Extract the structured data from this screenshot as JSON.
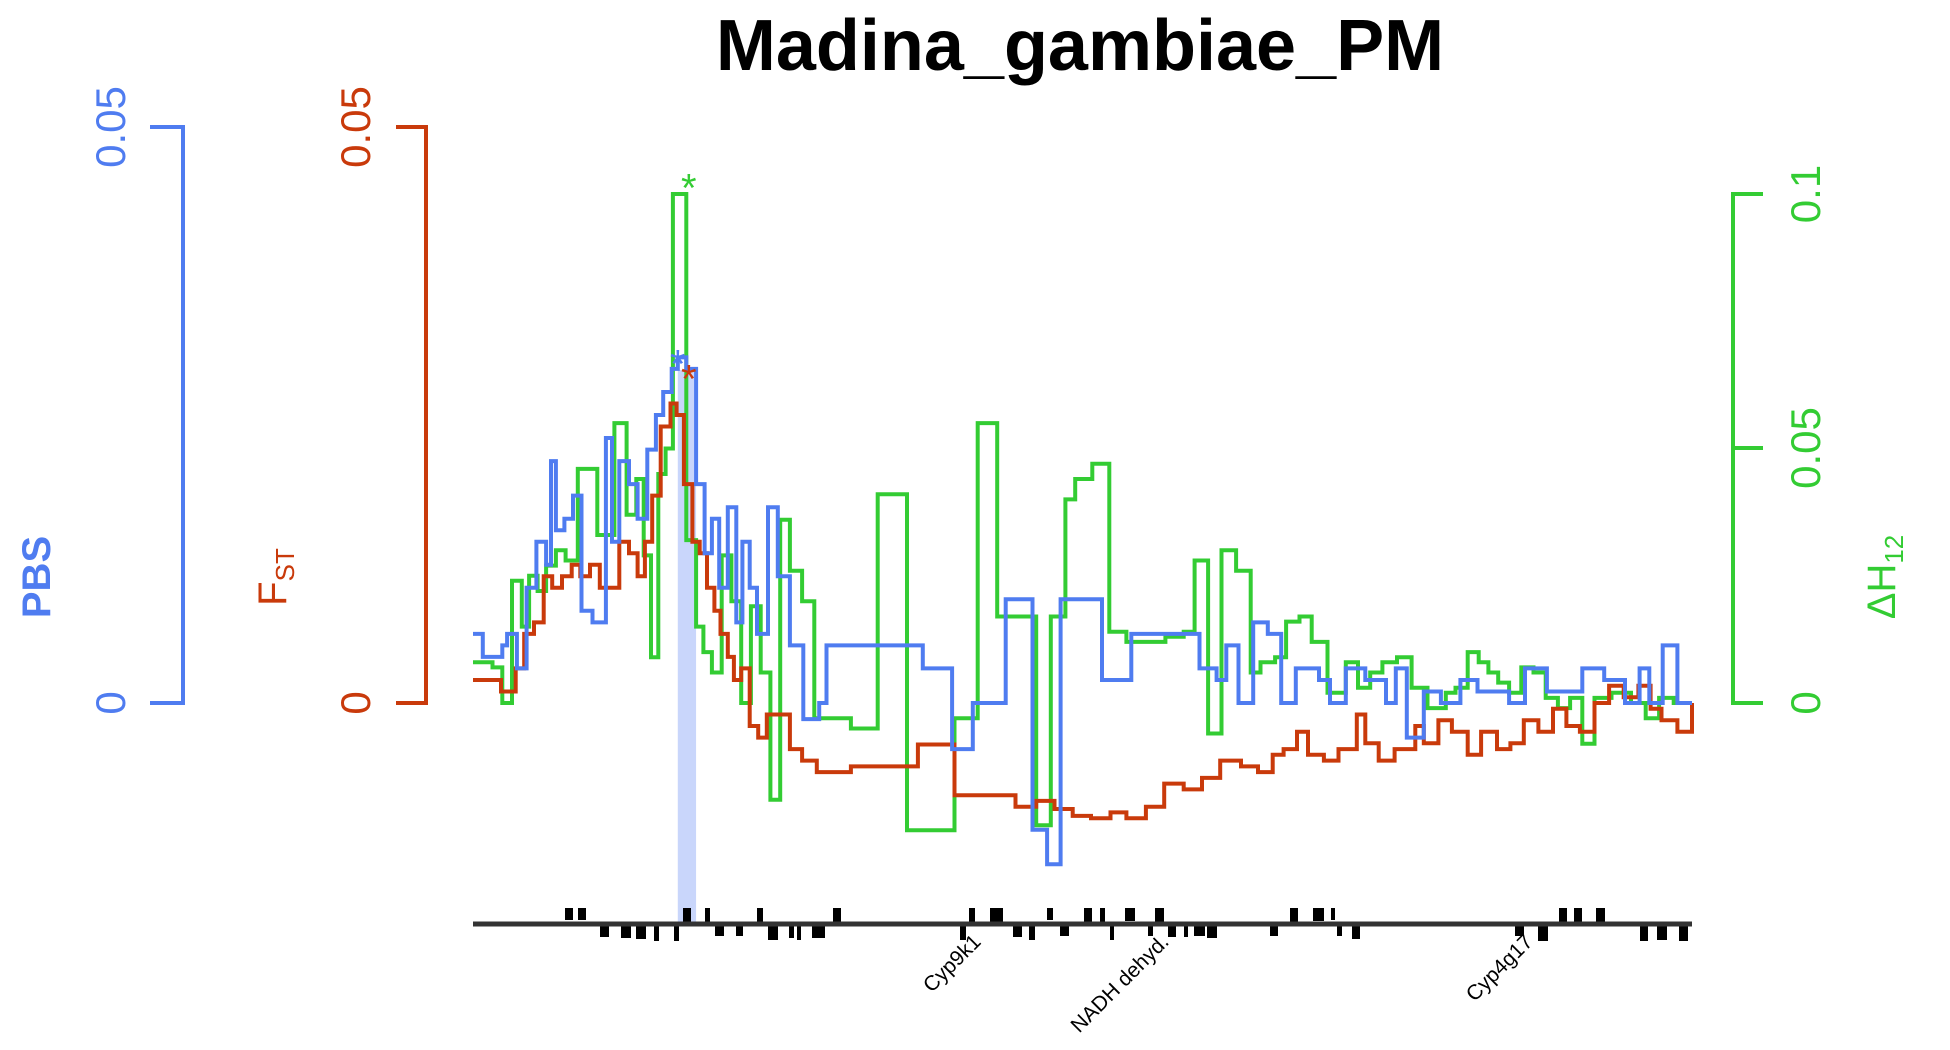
{
  "chart_data": {
    "type": "line",
    "title": "Madina_gambiae_PM",
    "colors": {
      "pbs": "#4f7cf0",
      "fst": "#c93a0b",
      "h12": "#33cc33",
      "highlight": "#c9d6fb",
      "genes": "#000000"
    },
    "axes": {
      "pbs": {
        "label": "PBS",
        "ticks": [
          "0",
          "0.05"
        ],
        "ylim": [
          0,
          0.05
        ]
      },
      "fst": {
        "label_main": "F",
        "label_sub": "ST",
        "ticks": [
          "0",
          "0.05"
        ],
        "ylim": [
          0,
          0.05
        ]
      },
      "h12": {
        "label_main": "ΔH",
        "label_sub": "12",
        "ticks": [
          "0",
          "0.05",
          "0.1"
        ],
        "ylim": [
          0,
          0.1
        ]
      }
    },
    "xlim": [
      0,
      100
    ],
    "highlight_x": [
      16.8,
      18.3
    ],
    "stars": [
      {
        "series": "pbs",
        "x": 16.8,
        "y": 0.03,
        "text": "*"
      },
      {
        "series": "fst",
        "x": 17.7,
        "y": 0.0287,
        "text": "*"
      },
      {
        "series": "h12",
        "x": 17.7,
        "y": 0.1025,
        "text": "*"
      }
    ],
    "genes": [
      "Cyp9k1",
      "NADH dehyd.",
      "Cyp4g17"
    ],
    "series": [
      {
        "name": "PBS",
        "key": "pbs",
        "axis": "pbs",
        "x": [
          0.0,
          0.8,
          1.6,
          2.4,
          2.8,
          3.6,
          4.4,
          5.2,
          6.0,
          6.4,
          6.8,
          7.5,
          8.2,
          8.9,
          9.8,
          10.9,
          11.4,
          12.0,
          12.8,
          13.5,
          14.3,
          15.0,
          15.6,
          16.3,
          16.8,
          17.5,
          18.3,
          19.0,
          19.6,
          20.2,
          20.9,
          21.6,
          22.1,
          22.7,
          23.3,
          24.2,
          25.0,
          26.0,
          27.1,
          27.8,
          28.4,
          29.0,
          31.8,
          36.9,
          39.3,
          41.0,
          43.7,
          45.9,
          47.1,
          48.2,
          51.6,
          54.0,
          56.2,
          58.5,
          59.6,
          61.0,
          61.8,
          62.8,
          64.0,
          65.2,
          66.3,
          67.5,
          68.7,
          69.4,
          70.3,
          71.6,
          73.2,
          74.9,
          75.7,
          76.6,
          78.0,
          79.4,
          81.0,
          82.4,
          83.6,
          85.0,
          86.3,
          88.1,
          89.7,
          91.0,
          92.8,
          94.5,
          95.7,
          96.5,
          97.6,
          98.8,
          100.0
        ],
        "y": [
          0.006,
          0.004,
          0.005,
          0.006,
          0.004,
          0.009,
          0.014,
          0.012,
          0.021,
          0.015,
          0.016,
          0.018,
          0.012,
          0.008,
          0.023,
          0.014,
          0.021,
          0.019,
          0.016,
          0.022,
          0.02,
          0.025,
          0.027,
          0.03,
          0.029,
          0.019,
          0.013,
          0.016,
          0.01,
          0.017,
          0.007,
          0.014,
          0.01,
          0.006,
          0.017,
          0.011,
          0.01,
          0.005,
          0.005,
          0.004,
          0.003,
          0.007,
          0.017,
          0.01,
          0.004,
          -0.0007,
          -0.0007,
          0.0001,
          0.0001,
          0.0005,
          -0.0004,
          -0.0004,
          -0.0014,
          -0.0023,
          -0.0027,
          -0.0028,
          -0.0026,
          -0.0024,
          -0.0024,
          -0.0021,
          -0.0006,
          -0.0004,
          0.001,
          0.0002,
          0.0008,
          0.0008,
          0.0013,
          0.0008,
          0.0012,
          0.002,
          0.0021,
          0.0017,
          0.0024,
          0.0028,
          0.0026,
          0.0024,
          0.0025,
          0.0031,
          0.003,
          0.0038,
          0.0036,
          0.0034,
          0.0036,
          0.0041,
          0.0034,
          0.0034,
          0.0034
        ],
        "step_y": [
          0.006,
          0.004,
          0.004,
          0.005,
          0.006,
          0.003,
          0.01,
          0.014,
          0.012,
          0.021,
          0.015,
          0.016,
          0.018,
          0.008,
          0.007,
          0.023,
          0.014,
          0.021,
          0.019,
          0.016,
          0.022,
          0.025,
          0.027,
          0.029,
          0.03,
          0.029,
          0.019,
          0.013,
          0.016,
          0.01,
          0.017,
          0.007,
          0.014,
          0.01,
          0.006,
          0.017,
          0.011,
          0.005,
          -0.0014,
          -0.0014,
          0.0,
          0.005,
          0.005,
          0.003,
          -0.004,
          0.0,
          0.009,
          -0.011,
          -0.014,
          0.009,
          0.002,
          0.006,
          0.006,
          0.006,
          0.003,
          0.002,
          0.005,
          0.0,
          0.007,
          0.006,
          0.0,
          0.003,
          0.003,
          0.002,
          0.0,
          0.003,
          0.002,
          0.0,
          0.003,
          -0.003,
          0.001,
          0.0,
          0.002,
          0.001,
          0.001,
          0.0,
          0.003,
          0.001,
          0.001,
          0.003,
          0.002,
          0.0,
          0.003,
          0.0,
          0.005,
          0.0,
          0.0
        ]
      },
      {
        "name": "FST",
        "key": "fst",
        "axis": "fst",
        "x": [
          0.0,
          1.3,
          2.3,
          2.9,
          3.5,
          4.2,
          5.0,
          5.8,
          6.5,
          7.3,
          8.1,
          8.8,
          9.6,
          10.4,
          11.2,
          12.0,
          12.8,
          13.5,
          14.1,
          14.7,
          15.4,
          16.2,
          16.7,
          17.3,
          18.0,
          18.6,
          19.2,
          19.8,
          20.3,
          20.9,
          21.4,
          22.0,
          22.7,
          23.4,
          24.1,
          25.0,
          26.0,
          27.0,
          28.2,
          29.2,
          31.0,
          33.5,
          36.5,
          39.5,
          44.5,
          46.2,
          47.7,
          49.2,
          50.7,
          52.3,
          53.6,
          55.2,
          56.7,
          58.3,
          59.8,
          61.3,
          63.0,
          64.4,
          65.6,
          66.5,
          67.6,
          68.5,
          69.8,
          71.0,
          72.5,
          73.2,
          74.3,
          75.6,
          77.3,
          78.0,
          79.2,
          80.3,
          81.6,
          82.7,
          84.0,
          85.1,
          86.2,
          87.4,
          88.6,
          89.7,
          90.8,
          92.0,
          93.2,
          94.4,
          95.6,
          96.6,
          97.5,
          98.8,
          100.0
        ],
        "y": [
          0.002,
          0.0015,
          0.001,
          0.003,
          0.005,
          0.006,
          0.007,
          0.011,
          0.01,
          0.011,
          0.012,
          0.011,
          0.012,
          0.01,
          0.01,
          0.014,
          0.013,
          0.011,
          0.014,
          0.018,
          0.024,
          0.026,
          0.025,
          0.019,
          0.014,
          0.013,
          0.01,
          0.008,
          0.006,
          0.004,
          -0.002,
          -0.0025,
          -0.002,
          0.0025,
          0.0018,
          0.0015,
          -0.004,
          -0.005,
          -0.006,
          -0.006,
          -0.0056,
          -0.0054,
          -0.0036,
          -0.008,
          -0.009,
          -0.0085,
          -0.0092,
          -0.0098,
          -0.01,
          -0.0095,
          -0.01,
          -0.009,
          -0.007,
          -0.0075,
          -0.0065,
          -0.005,
          -0.0055,
          -0.006,
          -0.0045,
          -0.004,
          -0.0025,
          -0.0045,
          -0.005,
          -0.004,
          -0.001,
          -0.0035,
          -0.005,
          -0.004,
          -0.002,
          -0.0035,
          -0.0015,
          -0.0025,
          -0.0045,
          -0.0025,
          -0.004,
          -0.0035,
          -0.0015,
          -0.0025,
          -0.0005,
          -0.002,
          -0.0025,
          0.0,
          0.0015,
          0.0005,
          0.0015,
          -0.0005,
          -0.0015,
          -0.0025,
          0.0
        ],
        "step_y": [
          0.002,
          0.002,
          0.001,
          0.001,
          0.003,
          0.006,
          0.007,
          0.011,
          0.01,
          0.011,
          0.012,
          0.011,
          0.012,
          0.01,
          0.01,
          0.014,
          0.013,
          0.011,
          0.014,
          0.018,
          0.024,
          0.026,
          0.025,
          0.019,
          0.014,
          0.013,
          0.01,
          0.008,
          0.006,
          0.004,
          0.002,
          0.003,
          -0.002,
          -0.003,
          -0.001,
          -0.001,
          -0.004,
          -0.005,
          -0.006,
          -0.006,
          -0.0055,
          -0.0055,
          -0.0036,
          -0.008,
          -0.009,
          -0.0085,
          -0.0092,
          -0.0098,
          -0.01,
          -0.0095,
          -0.01,
          -0.009,
          -0.007,
          -0.0075,
          -0.0065,
          -0.005,
          -0.0055,
          -0.006,
          -0.0045,
          -0.004,
          -0.0025,
          -0.0045,
          -0.005,
          -0.004,
          -0.001,
          -0.0035,
          -0.005,
          -0.004,
          -0.002,
          -0.0035,
          -0.0015,
          -0.0025,
          -0.0045,
          -0.0025,
          -0.004,
          -0.0035,
          -0.0015,
          -0.0025,
          -0.0005,
          -0.002,
          -0.0025,
          0.0,
          0.0015,
          0.0005,
          0.0015,
          -0.0005,
          -0.0015,
          -0.0025,
          0.0
        ]
      },
      {
        "name": "ΔH12",
        "key": "h12",
        "axis": "h12",
        "x": [
          0.0,
          0.8,
          1.6,
          2.4,
          3.2,
          4.0,
          4.6,
          5.3,
          6.0,
          6.8,
          7.6,
          8.6,
          10.2,
          11.6,
          12.6,
          13.4,
          14.0,
          14.6,
          15.2,
          15.8,
          16.4,
          17.5,
          18.3,
          18.9,
          19.6,
          20.4,
          21.2,
          22.0,
          22.8,
          23.6,
          24.4,
          25.2,
          26.0,
          27.0,
          28.0,
          28.6,
          29.2,
          31.0,
          33.2,
          35.6,
          39.5,
          41.4,
          43.0,
          46.2,
          47.4,
          48.6,
          49.4,
          50.8,
          52.2,
          53.6,
          55.2,
          56.8,
          58.3,
          59.2,
          60.3,
          61.4,
          62.6,
          63.8,
          64.6,
          65.8,
          66.7,
          67.8,
          68.8,
          70.1,
          71.6,
          72.6,
          73.6,
          74.6,
          75.8,
          77.0,
          78.3,
          79.8,
          80.6,
          81.6,
          82.5,
          83.3,
          84.1,
          85.0,
          86.0,
          87.0,
          88.0,
          89.0,
          90.0,
          91.0,
          92.0,
          93.4,
          95.0,
          96.2,
          97.3,
          98.5,
          100.0
        ],
        "y": [
          0.008,
          0.007,
          0.009,
          0.0,
          0.024,
          0.015,
          0.025,
          0.022,
          0.027,
          0.03,
          0.028,
          0.046,
          0.033,
          0.055,
          0.037,
          0.044,
          0.029,
          0.009,
          0.045,
          0.05,
          0.1,
          0.032,
          0.015,
          0.01,
          0.006,
          0.029,
          0.02,
          0.0,
          0.019,
          0.006,
          -0.019,
          0.036,
          0.026,
          0.02,
          -0.003,
          -0.003,
          -0.003,
          -0.005,
          0.041,
          -0.025,
          -0.003,
          0.055,
          0.017,
          -0.024,
          0.017,
          0.04,
          0.044,
          0.047,
          0.014,
          0.012,
          0.012,
          0.013,
          0.014,
          0.028,
          -0.006,
          0.03,
          0.026,
          0.006,
          0.008,
          0.009,
          0.016,
          0.017,
          0.012,
          0.002,
          0.008,
          0.003,
          0.006,
          0.008,
          0.009,
          0.003,
          -0.001,
          0.002,
          0.003,
          0.01,
          0.008,
          0.006,
          0.004,
          0.002,
          0.007,
          0.006,
          0.001,
          -0.001,
          0.001,
          -0.008,
          0.001,
          0.002,
          0.0,
          -0.003,
          0.001,
          0.0,
          0.0
        ],
        "step_y": [
          0.008,
          0.008,
          0.007,
          0.0,
          0.024,
          0.015,
          0.025,
          0.022,
          0.027,
          0.03,
          0.028,
          0.046,
          0.033,
          0.055,
          0.037,
          0.044,
          0.029,
          0.009,
          0.045,
          0.05,
          0.1,
          0.032,
          0.015,
          0.01,
          0.006,
          0.029,
          0.02,
          0.0,
          0.019,
          0.006,
          -0.019,
          0.036,
          0.026,
          0.02,
          -0.003,
          -0.003,
          -0.003,
          -0.005,
          0.041,
          -0.025,
          -0.003,
          0.055,
          0.017,
          -0.024,
          0.017,
          0.04,
          0.044,
          0.047,
          0.014,
          0.012,
          0.012,
          0.013,
          0.014,
          0.028,
          -0.006,
          0.03,
          0.026,
          0.006,
          0.008,
          0.009,
          0.016,
          0.017,
          0.012,
          0.002,
          0.008,
          0.003,
          0.006,
          0.008,
          0.009,
          0.003,
          -0.001,
          0.002,
          0.003,
          0.01,
          0.008,
          0.006,
          0.004,
          0.002,
          0.007,
          0.006,
          0.001,
          -0.001,
          0.001,
          -0.008,
          0.001,
          0.002,
          0.0,
          -0.003,
          0.001,
          0.0,
          0.0
        ]
      }
    ]
  }
}
